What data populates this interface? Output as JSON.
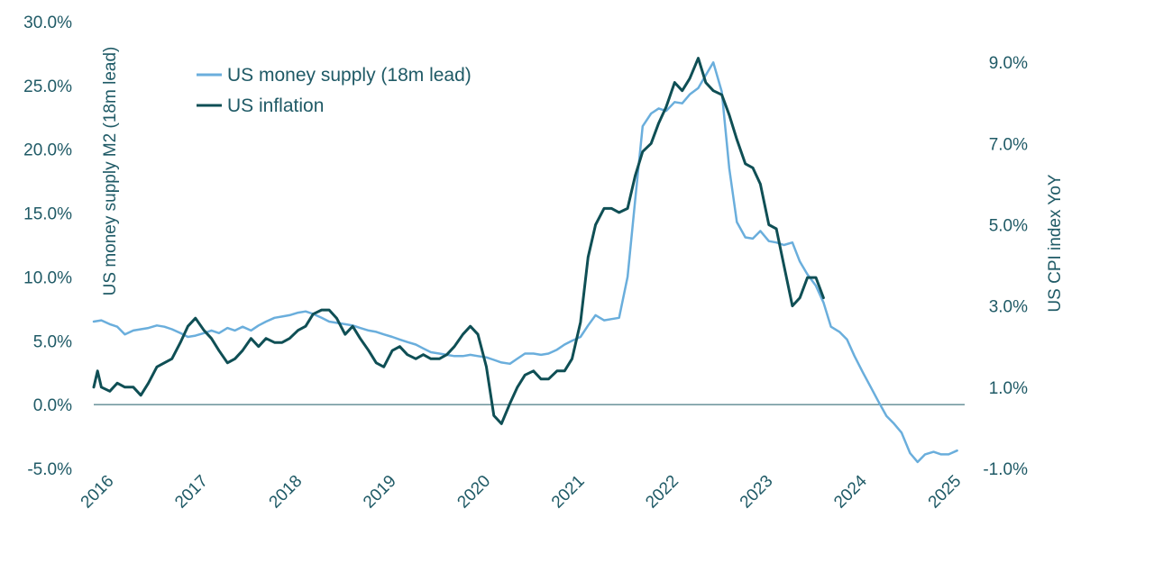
{
  "chart_data": {
    "type": "line",
    "title": "",
    "left_axis": {
      "label": "US money supply M2 (18m lead)",
      "range": [
        -5,
        30
      ],
      "ticks": [
        "-5.0%",
        "0.0%",
        "5.0%",
        "10.0%",
        "15.0%",
        "20.0%",
        "25.0%",
        "30.0%"
      ],
      "tick_values": [
        -5,
        0,
        5,
        10,
        15,
        20,
        25,
        30
      ]
    },
    "right_axis": {
      "label": "US CPI index YoY",
      "range": [
        -1,
        10
      ],
      "ticks": [
        "-1.0%",
        "1.0%",
        "3.0%",
        "5.0%",
        "7.0%",
        "9.0%"
      ],
      "tick_values": [
        -1,
        1,
        3,
        5,
        7,
        9
      ]
    },
    "x_axis": {
      "range": [
        2016.0,
        2025.25
      ],
      "ticks": [
        "2016",
        "2017",
        "2018",
        "2019",
        "2020",
        "2021",
        "2022",
        "2023",
        "2024",
        "2025"
      ],
      "tick_values": [
        2016,
        2017,
        2018,
        2019,
        2020,
        2021,
        2022,
        2023,
        2024,
        2025
      ]
    },
    "grid": false,
    "legend_position": "top-left",
    "series": [
      {
        "name": "US money supply (18m lead)",
        "axis": "left",
        "color": "#6aaedc",
        "x": [
          2016.0,
          2016.08,
          2016.17,
          2016.25,
          2016.33,
          2016.42,
          2016.5,
          2016.58,
          2016.67,
          2016.75,
          2016.83,
          2016.92,
          2017.0,
          2017.08,
          2017.17,
          2017.25,
          2017.33,
          2017.42,
          2017.5,
          2017.58,
          2017.67,
          2017.75,
          2017.83,
          2017.92,
          2018.0,
          2018.08,
          2018.17,
          2018.25,
          2018.33,
          2018.42,
          2018.5,
          2018.58,
          2018.67,
          2018.75,
          2018.83,
          2018.92,
          2019.0,
          2019.08,
          2019.17,
          2019.25,
          2019.33,
          2019.42,
          2019.5,
          2019.58,
          2019.67,
          2019.75,
          2019.83,
          2019.92,
          2020.0,
          2020.08,
          2020.17,
          2020.25,
          2020.33,
          2020.42,
          2020.5,
          2020.58,
          2020.67,
          2020.75,
          2020.83,
          2020.92,
          2021.0,
          2021.08,
          2021.17,
          2021.25,
          2021.33,
          2021.42,
          2021.5,
          2021.58,
          2021.67,
          2021.75,
          2021.83,
          2021.92,
          2022.0,
          2022.08,
          2022.17,
          2022.25,
          2022.33,
          2022.42,
          2022.5,
          2022.58,
          2022.67,
          2022.75,
          2022.83,
          2022.92,
          2023.0,
          2023.08,
          2023.17,
          2023.25,
          2023.33,
          2023.42,
          2023.5,
          2023.58,
          2023.67,
          2023.75,
          2023.83,
          2023.92,
          2024.0,
          2024.08,
          2024.17,
          2024.25,
          2024.33,
          2024.42,
          2024.5,
          2024.58,
          2024.67,
          2024.75,
          2024.83,
          2024.92,
          2025.0,
          2025.08,
          2025.17
        ],
        "values": [
          6.5,
          6.6,
          6.3,
          6.1,
          5.5,
          5.8,
          5.9,
          6.0,
          6.2,
          6.1,
          5.9,
          5.6,
          5.3,
          5.4,
          5.6,
          5.8,
          5.6,
          6.0,
          5.8,
          6.1,
          5.8,
          6.2,
          6.5,
          6.8,
          6.9,
          7.0,
          7.2,
          7.3,
          7.1,
          6.8,
          6.5,
          6.4,
          6.3,
          6.2,
          6.0,
          5.8,
          5.7,
          5.5,
          5.3,
          5.1,
          4.9,
          4.7,
          4.4,
          4.1,
          4.0,
          3.9,
          3.8,
          3.8,
          3.9,
          3.8,
          3.7,
          3.5,
          3.3,
          3.2,
          3.6,
          4.0,
          4.0,
          3.9,
          4.0,
          4.3,
          4.7,
          5.0,
          5.3,
          6.2,
          7.0,
          6.6,
          6.7,
          6.8,
          10.0,
          16.0,
          21.8,
          22.8,
          23.2,
          23.0,
          23.7,
          23.6,
          24.3,
          24.8,
          25.8,
          26.8,
          24.5,
          18.5,
          14.3,
          13.1,
          13.0,
          13.6,
          12.8,
          12.7,
          12.5,
          12.7,
          11.2,
          10.2,
          9.3,
          8.0,
          6.1,
          5.7,
          5.1,
          3.8,
          2.5,
          1.4,
          0.3,
          -0.9,
          -1.5,
          -2.2,
          -3.8,
          -4.5,
          -3.9,
          -3.7,
          -3.9,
          -3.9,
          -3.6
        ]
      },
      {
        "name": "US inflation",
        "axis": "right",
        "color": "#0f4f55",
        "x": [
          2016.0,
          2016.04,
          2016.08,
          2016.17,
          2016.25,
          2016.33,
          2016.42,
          2016.5,
          2016.58,
          2016.67,
          2016.75,
          2016.83,
          2016.92,
          2017.0,
          2017.08,
          2017.17,
          2017.25,
          2017.33,
          2017.42,
          2017.5,
          2017.58,
          2017.67,
          2017.75,
          2017.83,
          2017.92,
          2018.0,
          2018.08,
          2018.17,
          2018.25,
          2018.33,
          2018.42,
          2018.5,
          2018.58,
          2018.67,
          2018.75,
          2018.83,
          2018.92,
          2019.0,
          2019.08,
          2019.17,
          2019.25,
          2019.33,
          2019.42,
          2019.5,
          2019.58,
          2019.67,
          2019.75,
          2019.83,
          2019.92,
          2020.0,
          2020.08,
          2020.17,
          2020.25,
          2020.33,
          2020.42,
          2020.5,
          2020.58,
          2020.67,
          2020.75,
          2020.83,
          2020.92,
          2021.0,
          2021.08,
          2021.17,
          2021.25,
          2021.33,
          2021.42,
          2021.5,
          2021.58,
          2021.67,
          2021.75,
          2021.83,
          2021.92,
          2022.0,
          2022.08,
          2022.17,
          2022.25,
          2022.33,
          2022.42,
          2022.5,
          2022.58,
          2022.67,
          2022.75,
          2022.83,
          2022.92,
          2023.0,
          2023.08,
          2023.17,
          2023.25,
          2023.33,
          2023.42,
          2023.5,
          2023.58,
          2023.67,
          2023.75
        ],
        "values": [
          1.0,
          1.4,
          1.0,
          0.9,
          1.1,
          1.0,
          1.0,
          0.8,
          1.1,
          1.5,
          1.6,
          1.7,
          2.1,
          2.5,
          2.7,
          2.4,
          2.2,
          1.9,
          1.6,
          1.7,
          1.9,
          2.2,
          2.0,
          2.2,
          2.1,
          2.1,
          2.2,
          2.4,
          2.5,
          2.8,
          2.9,
          2.9,
          2.7,
          2.3,
          2.5,
          2.2,
          1.9,
          1.6,
          1.5,
          1.9,
          2.0,
          1.8,
          1.7,
          1.8,
          1.7,
          1.7,
          1.8,
          2.0,
          2.3,
          2.5,
          2.3,
          1.5,
          0.3,
          0.1,
          0.6,
          1.0,
          1.3,
          1.4,
          1.2,
          1.2,
          1.4,
          1.4,
          1.7,
          2.6,
          4.2,
          5.0,
          5.4,
          5.4,
          5.3,
          5.4,
          6.2,
          6.8,
          7.0,
          7.5,
          7.9,
          8.5,
          8.3,
          8.6,
          9.1,
          8.5,
          8.3,
          8.2,
          7.7,
          7.1,
          6.5,
          6.4,
          6.0,
          5.0,
          4.9,
          4.0,
          3.0,
          3.2,
          3.7,
          3.7,
          3.2
        ]
      }
    ]
  }
}
